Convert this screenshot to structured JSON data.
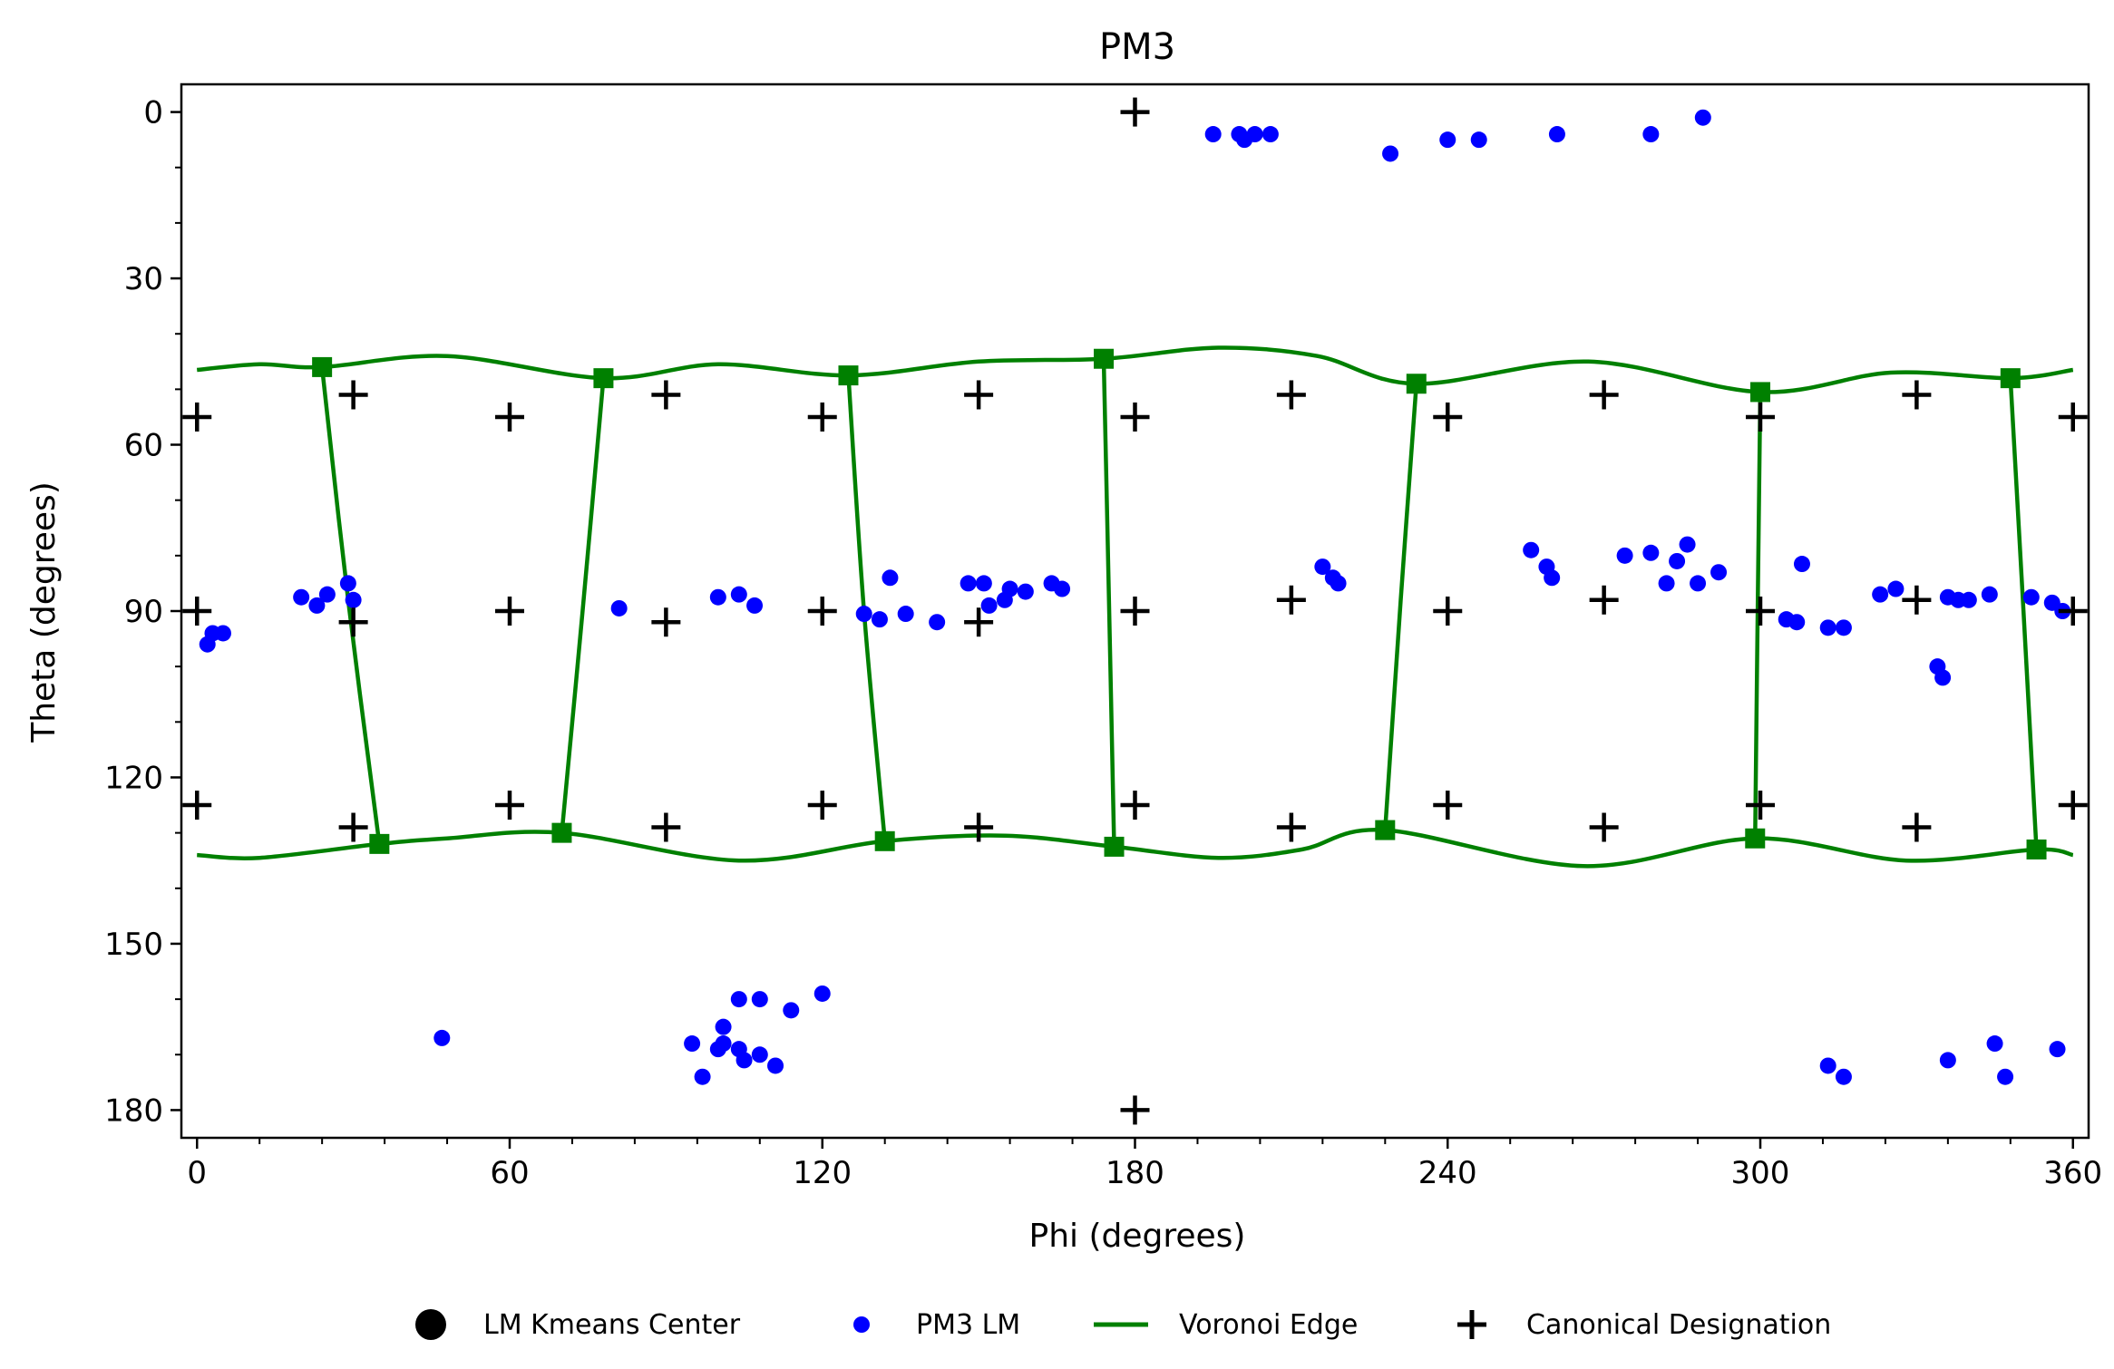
{
  "chart_data": {
    "type": "scatter",
    "title": "PM3",
    "xlabel": "Phi (degrees)",
    "ylabel": "Theta (degrees)",
    "xlim": [
      -3,
      363
    ],
    "ylim": [
      185,
      -5
    ],
    "y_inverted": true,
    "x_ticks": [
      0,
      60,
      120,
      180,
      240,
      300,
      360
    ],
    "y_ticks": [
      0,
      30,
      60,
      90,
      120,
      150,
      180
    ],
    "x_tick_labels": [
      "0",
      "60",
      "120",
      "180",
      "240",
      "300",
      "360"
    ],
    "y_tick_labels": [
      "0",
      "30",
      "60",
      "90",
      "120",
      "150",
      "180"
    ],
    "x_minor_step": 12,
    "y_minor_step": 10,
    "grid": false,
    "legend_position": "below-plot",
    "colors": {
      "lm_points": "#0000ff",
      "voronoi": "#008000",
      "canonical": "#000000",
      "kmeans": "#000000"
    },
    "legend": [
      {
        "label": "LM Kmeans Center",
        "marker": "large-circle",
        "color": "#000000"
      },
      {
        "label": "PM3 LM",
        "marker": "circle",
        "color": "#0000ff"
      },
      {
        "label": "Voronoi Edge",
        "marker": "line",
        "color": "#008000"
      },
      {
        "label": "Canonical Designation",
        "marker": "plus",
        "color": "#000000"
      }
    ],
    "lm_kmeans_centers": [],
    "pm3_lm_points": [
      [
        195,
        4
      ],
      [
        200,
        4
      ],
      [
        201,
        5
      ],
      [
        203,
        4
      ],
      [
        206,
        4
      ],
      [
        229,
        7.5
      ],
      [
        240,
        5
      ],
      [
        246,
        5
      ],
      [
        261,
        4
      ],
      [
        279,
        4
      ],
      [
        289,
        1
      ],
      [
        2,
        96
      ],
      [
        3,
        94
      ],
      [
        5,
        94
      ],
      [
        20,
        87.5
      ],
      [
        23,
        89
      ],
      [
        25,
        87
      ],
      [
        29,
        85
      ],
      [
        30,
        88
      ],
      [
        81,
        89.5
      ],
      [
        100,
        87.5
      ],
      [
        104,
        87
      ],
      [
        107,
        89
      ],
      [
        128,
        90.5
      ],
      [
        131,
        91.5
      ],
      [
        133,
        84
      ],
      [
        136,
        90.5
      ],
      [
        142,
        92
      ],
      [
        148,
        85
      ],
      [
        151,
        85
      ],
      [
        152,
        89
      ],
      [
        155,
        88
      ],
      [
        156,
        86
      ],
      [
        159,
        86.5
      ],
      [
        164,
        85
      ],
      [
        166,
        86
      ],
      [
        216,
        82
      ],
      [
        218,
        84
      ],
      [
        219,
        85
      ],
      [
        256,
        79
      ],
      [
        259,
        82
      ],
      [
        260,
        84
      ],
      [
        274,
        80
      ],
      [
        279,
        79.5
      ],
      [
        282,
        85
      ],
      [
        284,
        81
      ],
      [
        286,
        78
      ],
      [
        288,
        85
      ],
      [
        292,
        83
      ],
      [
        305,
        91.5
      ],
      [
        307,
        92
      ],
      [
        308,
        81.5
      ],
      [
        313,
        93
      ],
      [
        316,
        93
      ],
      [
        323,
        87
      ],
      [
        326,
        86
      ],
      [
        334,
        100
      ],
      [
        335,
        102
      ],
      [
        336,
        87.5
      ],
      [
        338,
        88
      ],
      [
        340,
        88
      ],
      [
        344,
        87
      ],
      [
        352,
        87.5
      ],
      [
        356,
        88.5
      ],
      [
        358,
        90
      ],
      [
        47,
        167
      ],
      [
        95,
        168
      ],
      [
        97,
        174
      ],
      [
        100,
        169
      ],
      [
        101,
        168
      ],
      [
        101,
        165
      ],
      [
        104,
        160
      ],
      [
        104,
        169
      ],
      [
        105,
        171
      ],
      [
        108,
        160
      ],
      [
        108,
        170
      ],
      [
        111,
        172
      ],
      [
        114,
        162
      ],
      [
        120,
        159
      ],
      [
        313,
        172
      ],
      [
        316,
        174
      ],
      [
        336,
        171
      ],
      [
        345,
        168
      ],
      [
        347,
        174
      ],
      [
        357,
        169
      ]
    ],
    "canonical_designations": [
      [
        180,
        0
      ],
      [
        180,
        180
      ],
      [
        0,
        55
      ],
      [
        60,
        55
      ],
      [
        120,
        55
      ],
      [
        180,
        55
      ],
      [
        240,
        55
      ],
      [
        300,
        55
      ],
      [
        360,
        55
      ],
      [
        30,
        51
      ],
      [
        90,
        51
      ],
      [
        150,
        51
      ],
      [
        210,
        51
      ],
      [
        270,
        51
      ],
      [
        330,
        51
      ],
      [
        0,
        90
      ],
      [
        60,
        90
      ],
      [
        120,
        90
      ],
      [
        180,
        90
      ],
      [
        240,
        90
      ],
      [
        300,
        90
      ],
      [
        360,
        90
      ],
      [
        30,
        92
      ],
      [
        90,
        92
      ],
      [
        150,
        92
      ],
      [
        210,
        88
      ],
      [
        270,
        88
      ],
      [
        330,
        88
      ],
      [
        0,
        125
      ],
      [
        60,
        125
      ],
      [
        120,
        125
      ],
      [
        180,
        125
      ],
      [
        240,
        125
      ],
      [
        300,
        125
      ],
      [
        360,
        125
      ],
      [
        30,
        129
      ],
      [
        90,
        129
      ],
      [
        150,
        129
      ],
      [
        210,
        129
      ],
      [
        270,
        129
      ],
      [
        330,
        129
      ]
    ],
    "voronoi_vertices": [
      [
        24,
        46
      ],
      [
        78,
        48
      ],
      [
        125,
        47.5
      ],
      [
        174,
        44.5
      ],
      [
        234,
        49
      ],
      [
        300,
        50.5
      ],
      [
        348,
        48
      ],
      [
        35,
        132
      ],
      [
        70,
        130
      ],
      [
        132,
        131.5
      ],
      [
        176,
        132.5
      ],
      [
        228,
        129.5
      ],
      [
        299,
        131
      ],
      [
        353,
        133
      ]
    ],
    "voronoi_edges_top": [
      [
        0,
        46.5
      ],
      [
        12,
        45.5
      ],
      [
        24,
        46
      ],
      [
        48,
        44
      ],
      [
        78,
        48
      ],
      [
        100,
        45.5
      ],
      [
        125,
        47.5
      ],
      [
        150,
        45
      ],
      [
        174,
        44.5
      ],
      [
        196,
        42.5
      ],
      [
        215,
        44
      ],
      [
        234,
        49
      ],
      [
        267,
        45
      ],
      [
        300,
        50.5
      ],
      [
        325,
        47
      ],
      [
        348,
        48
      ],
      [
        360,
        46.5
      ]
    ],
    "voronoi_edges_bottom": [
      [
        0,
        134
      ],
      [
        12,
        134.5
      ],
      [
        35,
        132
      ],
      [
        48,
        131
      ],
      [
        70,
        130
      ],
      [
        104,
        135
      ],
      [
        132,
        131.5
      ],
      [
        155,
        130.5
      ],
      [
        176,
        132.5
      ],
      [
        196,
        134.5
      ],
      [
        212,
        133
      ],
      [
        228,
        129.5
      ],
      [
        266,
        136
      ],
      [
        299,
        131
      ],
      [
        328,
        135
      ],
      [
        353,
        133
      ],
      [
        360,
        134
      ]
    ],
    "voronoi_edges_vertical": [
      [
        [
          24,
          46
        ],
        [
          29,
          88
        ],
        [
          35,
          132
        ]
      ],
      [
        [
          78,
          48
        ],
        [
          74,
          90
        ],
        [
          70,
          130
        ]
      ],
      [
        [
          125,
          47.5
        ],
        [
          128,
          90
        ],
        [
          132,
          131.5
        ]
      ],
      [
        [
          174,
          44.5
        ],
        [
          175,
          88
        ],
        [
          176,
          132.5
        ]
      ],
      [
        [
          234,
          49
        ],
        [
          231,
          88
        ],
        [
          228,
          129.5
        ]
      ],
      [
        [
          300,
          50.5
        ],
        [
          299.5,
          90
        ],
        [
          299,
          131
        ]
      ],
      [
        [
          348,
          48
        ],
        [
          350.5,
          90
        ],
        [
          353,
          133
        ]
      ]
    ]
  }
}
